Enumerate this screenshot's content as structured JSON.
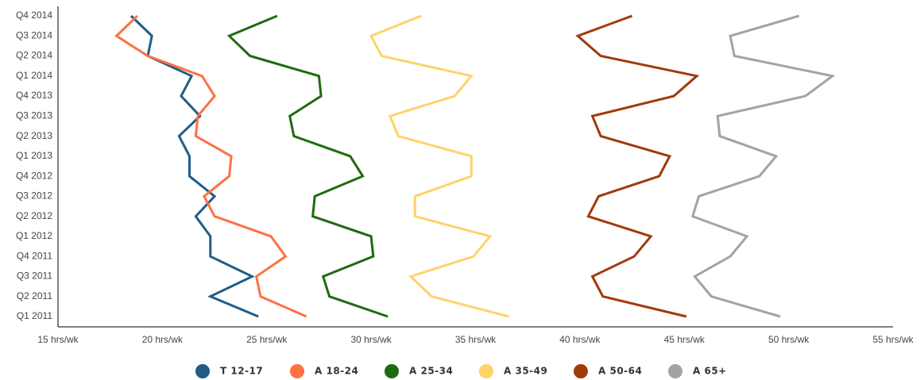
{
  "chart_data": {
    "type": "line",
    "orientation": "horizontal",
    "categories": [
      "Q1 2011",
      "Q2 2011",
      "Q3 2011",
      "Q4 2011",
      "Q1 2012",
      "Q2 2012",
      "Q3 2012",
      "Q4 2012",
      "Q1 2013",
      "Q2 2013",
      "Q3 2013",
      "Q4 2013",
      "Q1 2014",
      "Q2 2014",
      "Q3 2014",
      "Q4 2014"
    ],
    "x_ticks": [
      "15 hrs/wk",
      "20 hrs/wk",
      "25 hrs/wk",
      "30 hrs/wk",
      "35 hrs/wk",
      "40 hrs/wk",
      "45 hrs/wk",
      "50 hrs/wk",
      "55 hrs/wk"
    ],
    "xlim": [
      15,
      55
    ],
    "title": "",
    "xlabel": "",
    "ylabel": "",
    "grid": false,
    "legend_position": "bottom-center",
    "series": [
      {
        "name": "T 12-17",
        "color": "#1f5d87",
        "values": [
          24.6,
          22.3,
          24.3,
          22.3,
          22.3,
          21.6,
          22.5,
          21.3,
          21.3,
          20.8,
          21.8,
          20.9,
          21.4,
          19.3,
          19.5,
          18.5
        ]
      },
      {
        "name": "A 18-24",
        "color": "#ff7043",
        "values": [
          26.9,
          24.7,
          24.5,
          25.9,
          25.2,
          22.5,
          22.0,
          23.2,
          23.3,
          21.6,
          21.7,
          22.5,
          21.9,
          19.3,
          17.8,
          18.8
        ]
      },
      {
        "name": "A 25-34",
        "color": "#1e6b0f",
        "values": [
          30.8,
          28.0,
          27.7,
          30.1,
          30.0,
          27.2,
          27.3,
          29.6,
          29.0,
          26.3,
          26.1,
          27.6,
          27.5,
          24.2,
          23.2,
          25.5
        ]
      },
      {
        "name": "A 35-49",
        "color": "#ffd36b",
        "values": [
          36.6,
          32.9,
          31.9,
          34.9,
          35.7,
          32.1,
          32.1,
          34.8,
          34.8,
          31.3,
          30.9,
          34.0,
          34.8,
          30.5,
          30.0,
          32.4
        ]
      },
      {
        "name": "A 50-64",
        "color": "#a13a0a",
        "values": [
          45.1,
          41.1,
          40.6,
          42.6,
          43.4,
          40.4,
          40.9,
          43.8,
          44.3,
          41.0,
          40.6,
          44.5,
          45.6,
          41.0,
          39.9,
          42.5
        ]
      },
      {
        "name": "A 65+",
        "color": "#a3a3a3",
        "values": [
          49.6,
          46.3,
          45.5,
          47.2,
          48.0,
          45.4,
          45.7,
          48.6,
          49.4,
          46.7,
          46.6,
          50.8,
          52.1,
          47.4,
          47.2,
          50.5
        ]
      }
    ]
  }
}
